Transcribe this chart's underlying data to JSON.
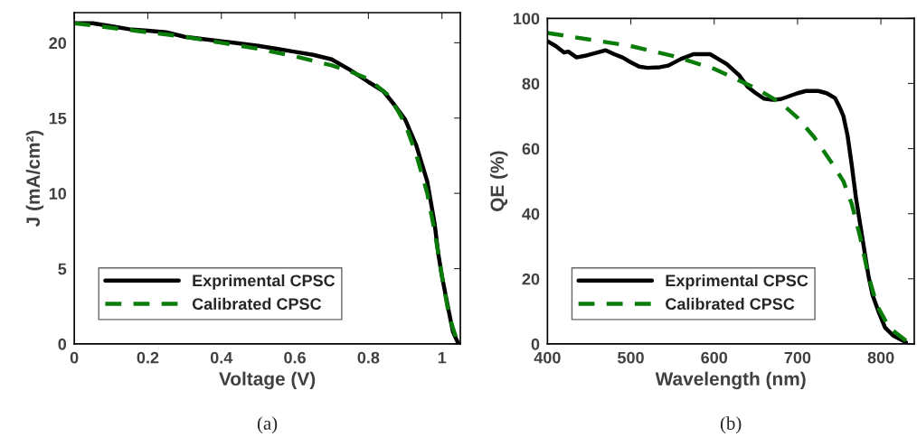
{
  "chart_data": [
    {
      "type": "line",
      "xlabel": "Voltage (V)",
      "ylabel": "J (mA/cm²)",
      "annotations": [
        "(a)"
      ],
      "xlim": [
        0,
        1.05
      ],
      "ylim": [
        0,
        22
      ],
      "xticks": [
        0,
        0.2,
        0.4,
        0.6,
        0.8,
        1
      ],
      "yticks": [
        0,
        5,
        10,
        15,
        20
      ],
      "grid": false,
      "legend": "bottom left",
      "marker": "none",
      "series": [
        {
          "name": "Exprimental CPSC",
          "color": "#000000",
          "line_style": "solid",
          "x": [
            0,
            0.05,
            0.1,
            0.15,
            0.2,
            0.25,
            0.3,
            0.4,
            0.5,
            0.55,
            0.6,
            0.65,
            0.7,
            0.75,
            0.8,
            0.84,
            0.87,
            0.9,
            0.93,
            0.96,
            0.98,
            0.99,
            1.0,
            1.02,
            1.03,
            1.045
          ],
          "values": [
            21.3,
            21.3,
            21.1,
            20.9,
            20.8,
            20.7,
            20.4,
            20.1,
            19.8,
            19.6,
            19.4,
            19.2,
            18.9,
            18.2,
            17.4,
            16.8,
            15.9,
            14.9,
            13.2,
            10.8,
            8.0,
            6.0,
            4.5,
            2.0,
            0.8,
            0
          ]
        },
        {
          "name": "Calibrated CPSC",
          "color": "#0a7c0a",
          "line_style": "dashed",
          "x": [
            0,
            0.1,
            0.2,
            0.3,
            0.4,
            0.5,
            0.6,
            0.7,
            0.75,
            0.8,
            0.85,
            0.88,
            0.9,
            0.93,
            0.96,
            0.98,
            1.0,
            1.02,
            1.04
          ],
          "values": [
            21.3,
            21.0,
            20.7,
            20.4,
            20.0,
            19.6,
            19.1,
            18.5,
            18.1,
            17.6,
            16.6,
            15.5,
            14.6,
            12.6,
            10.0,
            7.5,
            4.5,
            1.8,
            0.3
          ]
        }
      ]
    },
    {
      "type": "line",
      "xlabel": "Wavelength (nm)",
      "ylabel": "QE (%)",
      "annotations": [
        "(b)"
      ],
      "xlim": [
        400,
        840
      ],
      "ylim": [
        0,
        100
      ],
      "xticks": [
        400,
        500,
        600,
        700,
        800
      ],
      "yticks": [
        0,
        20,
        40,
        60,
        80,
        100
      ],
      "grid": false,
      "legend": "bottom left",
      "marker": "none",
      "series": [
        {
          "name": "Exprimental CPSC",
          "color": "#000000",
          "line_style": "solid",
          "x": [
            400,
            410,
            420,
            425,
            435,
            445,
            460,
            470,
            480,
            490,
            500,
            510,
            520,
            535,
            545,
            560,
            575,
            595,
            605,
            615,
            630,
            640,
            650,
            660,
            670,
            680,
            700,
            710,
            725,
            735,
            745,
            750,
            755,
            760,
            765,
            770,
            775,
            780,
            785,
            790,
            797,
            805,
            815,
            830
          ],
          "values": [
            93,
            91.5,
            89.5,
            89.8,
            88,
            88.5,
            89.5,
            90.2,
            89,
            88,
            86.5,
            85.2,
            84.8,
            85,
            85.5,
            87.5,
            89,
            89,
            87.5,
            86,
            82.5,
            79,
            77,
            75.3,
            75,
            75.2,
            77,
            77.7,
            77.7,
            77,
            75.5,
            73,
            70,
            64,
            55,
            45,
            37,
            29,
            21,
            15,
            10,
            5,
            2.5,
            0.5
          ]
        },
        {
          "name": "Calibrated CPSC",
          "color": "#0a7c0a",
          "line_style": "dashed",
          "x": [
            400,
            450,
            500,
            550,
            600,
            650,
            680,
            700,
            720,
            740,
            755,
            765,
            775,
            785,
            795,
            810,
            830
          ],
          "values": [
            95.5,
            93.5,
            91.5,
            88.5,
            84.5,
            78.5,
            74,
            69.5,
            63.5,
            56,
            50,
            43,
            33,
            21,
            12,
            5,
            1
          ]
        }
      ]
    }
  ]
}
